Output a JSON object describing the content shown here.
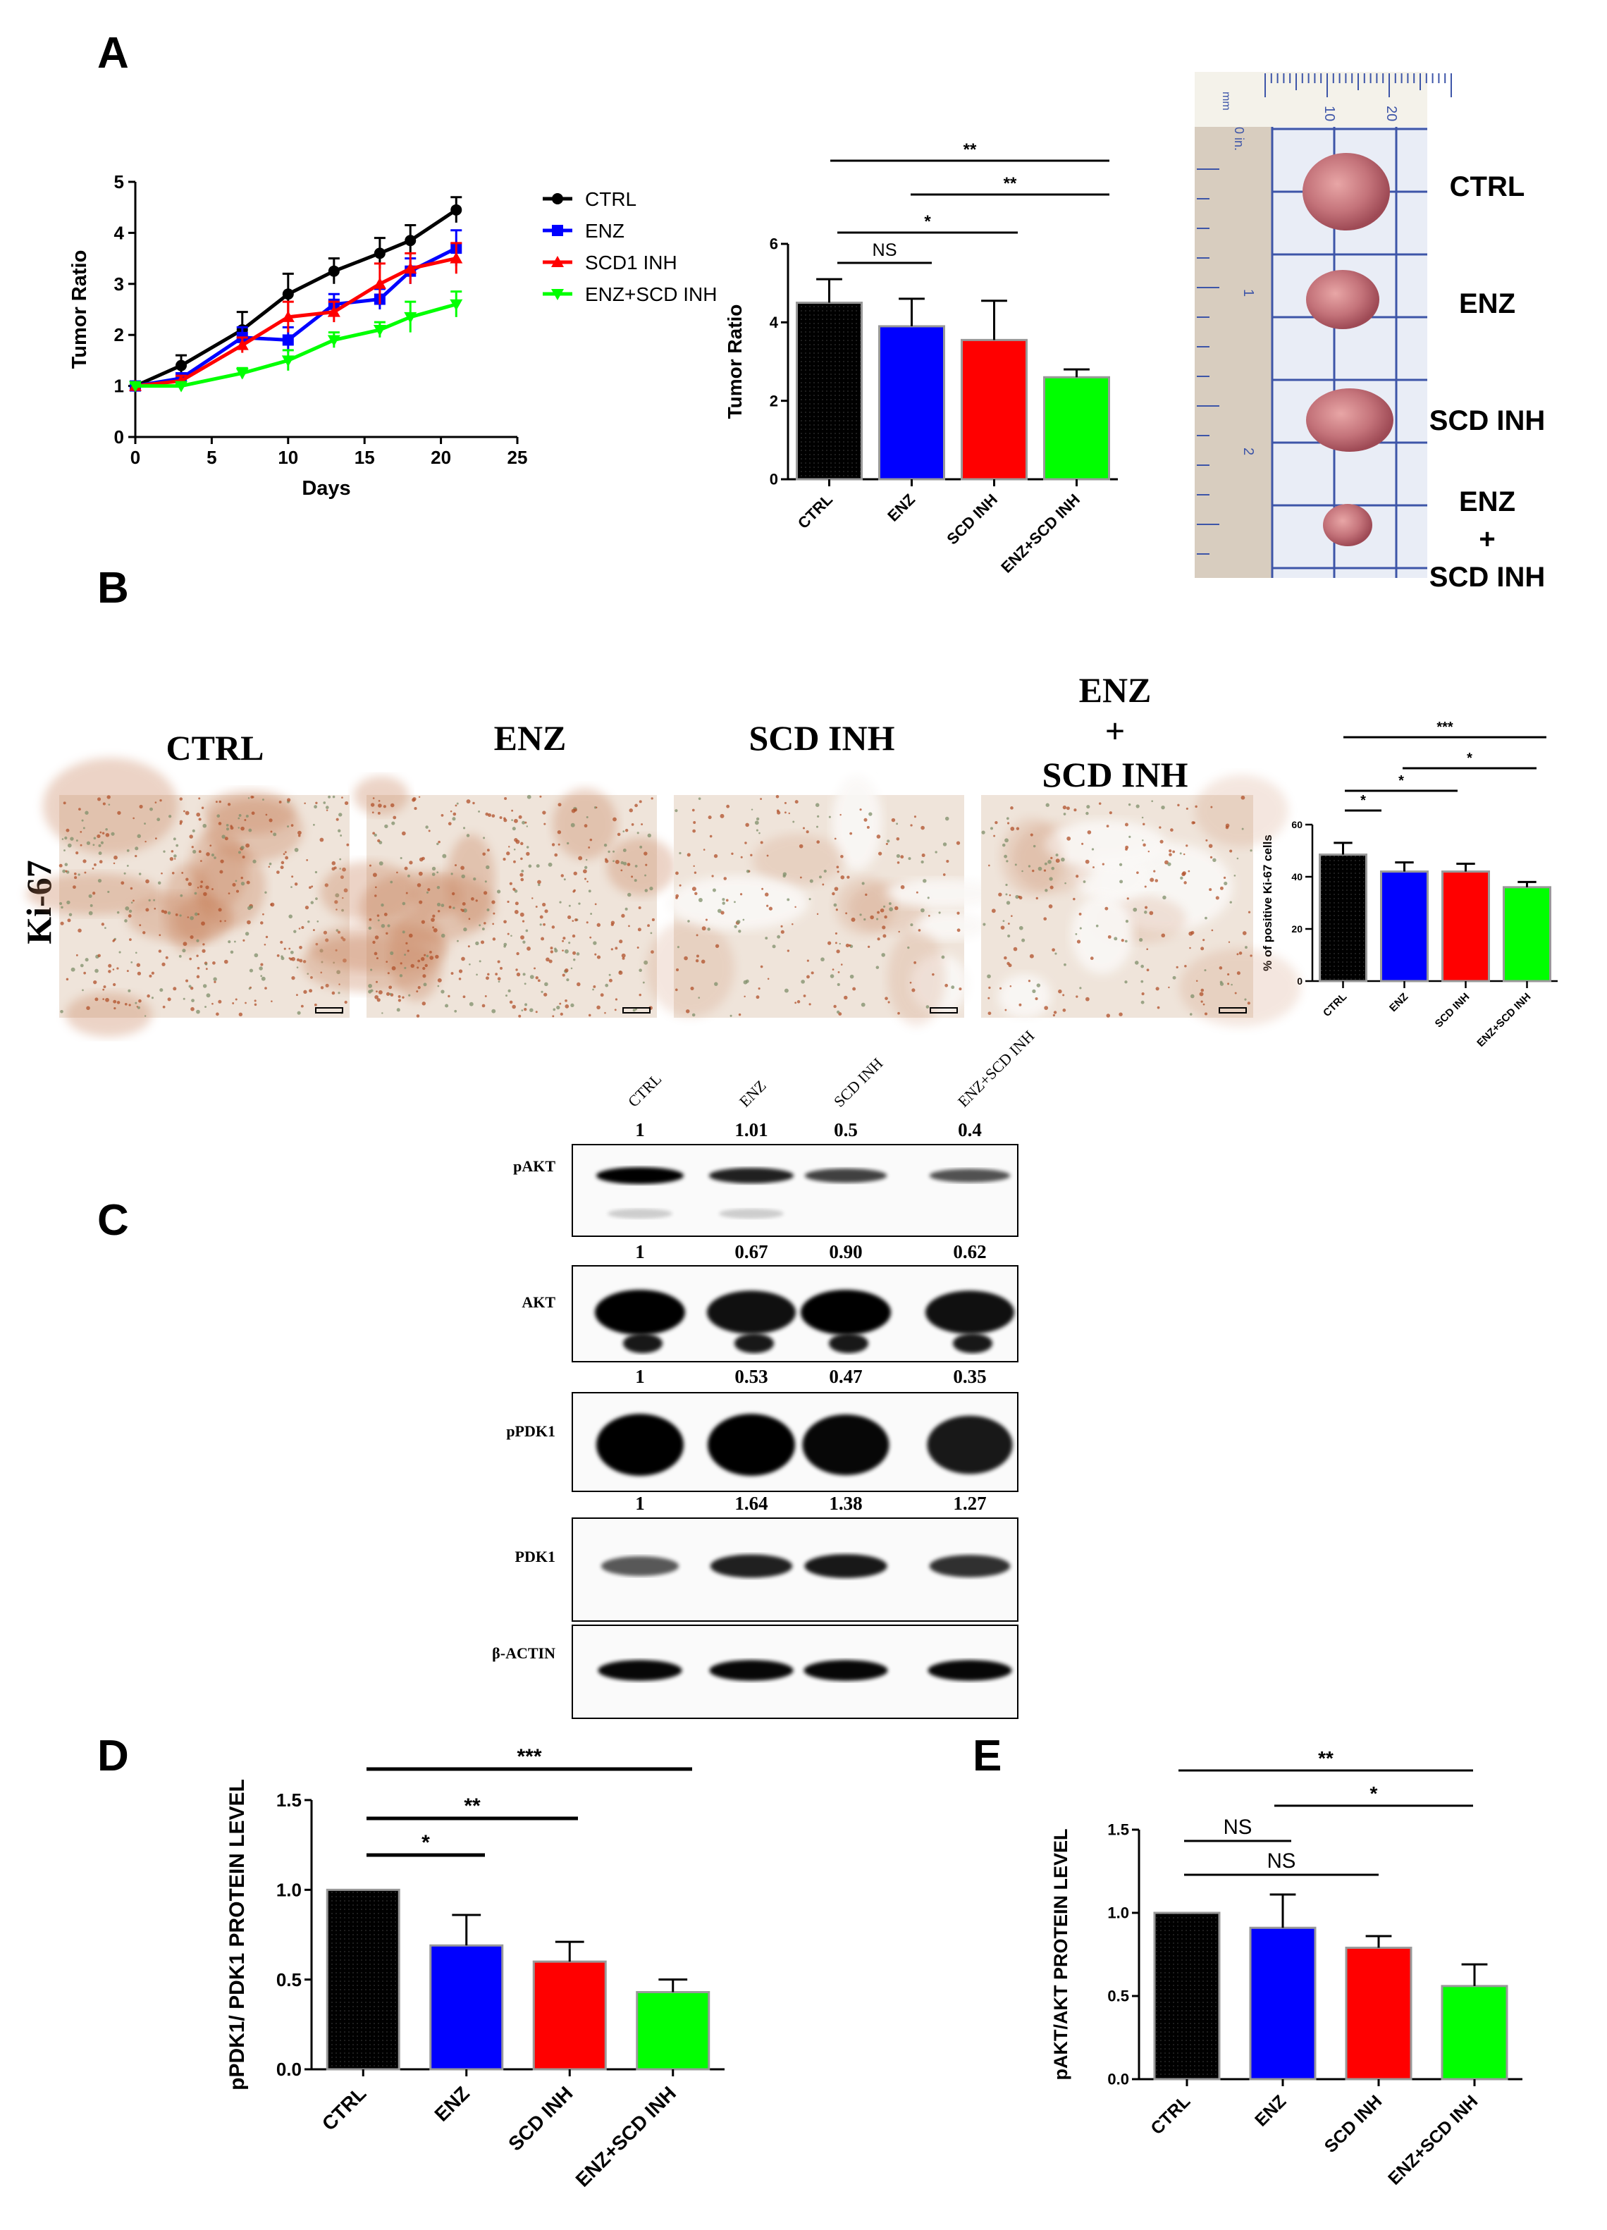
{
  "panel_labels": {
    "A": "A",
    "B": "B",
    "C": "C",
    "D": "D",
    "E": "E"
  },
  "colors": {
    "ctrl": "#000000",
    "enz": "#0000ff",
    "scd": "#ff0000",
    "combo": "#00ff00",
    "bar_edge": "#999999",
    "tissue": "#f2e6dc",
    "stain": "#b5542a"
  },
  "chart_data": [
    {
      "id": "A_line",
      "type": "line",
      "xlabel": "Days",
      "ylabel": "Tumor Ratio",
      "xlim": [
        0,
        25
      ],
      "ylim": [
        0,
        5
      ],
      "xticks": [
        "0",
        "5",
        "10",
        "15",
        "20",
        "25"
      ],
      "yticks": [
        "0",
        "1",
        "2",
        "3",
        "4",
        "5"
      ],
      "legend_position": "right",
      "series": [
        {
          "name": "CTRL",
          "color": "#000000",
          "marker": "circle",
          "x": [
            0,
            3,
            7,
            10,
            13,
            16,
            18,
            21
          ],
          "y": [
            1.0,
            1.4,
            2.1,
            2.8,
            3.25,
            3.6,
            3.85,
            4.45
          ],
          "err": [
            0.05,
            0.2,
            0.35,
            0.4,
            0.25,
            0.3,
            0.3,
            0.25
          ]
        },
        {
          "name": "ENZ",
          "color": "#0000ff",
          "marker": "square",
          "x": [
            0,
            3,
            7,
            10,
            13,
            16,
            18,
            21
          ],
          "y": [
            1.0,
            1.15,
            1.95,
            1.9,
            2.6,
            2.7,
            3.25,
            3.7
          ],
          "err": [
            0.05,
            0.1,
            0.2,
            0.25,
            0.2,
            0.2,
            0.25,
            0.35
          ]
        },
        {
          "name": "SCD1 INH",
          "color": "#ff0000",
          "marker": "triangle",
          "x": [
            0,
            3,
            7,
            10,
            13,
            16,
            18,
            21
          ],
          "y": [
            1.0,
            1.1,
            1.8,
            2.35,
            2.45,
            3.0,
            3.3,
            3.5
          ],
          "err": [
            0.05,
            0.1,
            0.15,
            0.3,
            0.2,
            0.4,
            0.3,
            0.3
          ]
        },
        {
          "name": "ENZ+SCD INH",
          "color": "#00ff00",
          "marker": "triangle-down",
          "x": [
            0,
            3,
            7,
            10,
            13,
            16,
            18,
            21
          ],
          "y": [
            1.0,
            1.0,
            1.25,
            1.5,
            1.9,
            2.1,
            2.35,
            2.6
          ],
          "err": [
            0.05,
            0.05,
            0.1,
            0.2,
            0.15,
            0.15,
            0.3,
            0.25
          ]
        }
      ]
    },
    {
      "id": "A_bar",
      "type": "bar",
      "ylabel": "Tumor Ratio",
      "ylim": [
        0,
        6
      ],
      "yticks": [
        "0",
        "2",
        "4",
        "6"
      ],
      "categories": [
        "CTRL",
        "ENZ",
        "SCD INH",
        "ENZ+SCD INH"
      ],
      "values": [
        4.5,
        3.9,
        3.55,
        2.6
      ],
      "errors": [
        0.6,
        0.7,
        1.0,
        0.2
      ],
      "colors": [
        "#000000",
        "#0000ff",
        "#ff0000",
        "#00ff00"
      ],
      "significance": [
        {
          "from": 0,
          "to": 1,
          "label": "NS"
        },
        {
          "from": 0,
          "to": 2,
          "label": "*"
        },
        {
          "from": 1,
          "to": 3,
          "label": "**"
        },
        {
          "from": 0,
          "to": 3,
          "label": "**"
        }
      ]
    },
    {
      "id": "B_bar",
      "type": "bar",
      "ylabel": "% of positive Ki-67 cells",
      "ylim": [
        0,
        60
      ],
      "yticks": [
        "0",
        "20",
        "40",
        "60"
      ],
      "categories": [
        "CTRL",
        "ENZ",
        "SCD INH",
        "ENZ+SCD INH"
      ],
      "values": [
        48.5,
        42,
        42,
        36
      ],
      "errors": [
        4.5,
        3.5,
        3.0,
        2.0
      ],
      "colors": [
        "#000000",
        "#0000ff",
        "#ff0000",
        "#00ff00"
      ],
      "significance": [
        {
          "from": 0,
          "to": 1,
          "label": "*"
        },
        {
          "from": 0,
          "to": 2,
          "label": "*"
        },
        {
          "from": 1,
          "to": 3,
          "label": "*"
        },
        {
          "from": 0,
          "to": 3,
          "label": "***"
        }
      ]
    },
    {
      "id": "D_bar",
      "type": "bar",
      "ylabel": "pPDK1/ PDK1 PROTEIN LEVEL",
      "ylim": [
        0,
        1.5
      ],
      "yticks": [
        "0.0",
        "0.5",
        "1.0",
        "1.5"
      ],
      "categories": [
        "CTRL",
        "ENZ",
        "SCD INH",
        "ENZ+SCD INH"
      ],
      "values": [
        1.0,
        0.69,
        0.6,
        0.43
      ],
      "errors": [
        0,
        0.17,
        0.11,
        0.07
      ],
      "colors": [
        "#000000",
        "#0000ff",
        "#ff0000",
        "#00ff00"
      ],
      "significance": [
        {
          "from": 0,
          "to": 1,
          "label": "*"
        },
        {
          "from": 0,
          "to": 2,
          "label": "**"
        },
        {
          "from": 0,
          "to": 3,
          "label": "***"
        }
      ]
    },
    {
      "id": "E_bar",
      "type": "bar",
      "ylabel": "pAKT/AKT PROTEIN LEVEL",
      "ylim": [
        0,
        1.5
      ],
      "yticks": [
        "0.0",
        "0.5",
        "1.0",
        "1.5"
      ],
      "categories": [
        "CTRL",
        "ENZ",
        "SCD INH",
        "ENZ+SCD INH"
      ],
      "values": [
        1.0,
        0.91,
        0.79,
        0.56
      ],
      "errors": [
        0,
        0.2,
        0.07,
        0.13
      ],
      "colors": [
        "#000000",
        "#0000ff",
        "#ff0000",
        "#00ff00"
      ],
      "significance": [
        {
          "from": 0,
          "to": 1,
          "label": "NS"
        },
        {
          "from": 0,
          "to": 3,
          "label": "NS"
        },
        {
          "from": 2,
          "to": 4,
          "label": "*"
        },
        {
          "from": 0,
          "to": 4,
          "label": "**"
        }
      ]
    }
  ],
  "photo_labels": [
    "CTRL",
    "ENZ",
    "SCD INH",
    "ENZ",
    "+",
    "SCD INH"
  ],
  "ruler_labels": [
    "mm",
    "0 in.",
    "10",
    "20",
    "1",
    "2"
  ],
  "ki67": {
    "row_label": "Ki-67",
    "groups": [
      "CTRL",
      "ENZ",
      "SCD INH",
      "ENZ",
      "+",
      "SCD INH"
    ]
  },
  "western": {
    "lanes": [
      "CTRL",
      "ENZ",
      "SCD INH",
      "ENZ+SCD INH"
    ],
    "blots": [
      {
        "label": "pAKT",
        "quant": [
          "1",
          "1.01",
          "0.5",
          "0.4"
        ],
        "intensity": [
          1.0,
          0.8,
          0.6,
          0.5
        ]
      },
      {
        "label": "AKT",
        "quant": [
          "1",
          "0.67",
          "0.90",
          "0.62"
        ],
        "intensity": [
          1.0,
          0.9,
          1.0,
          0.9
        ]
      },
      {
        "label": "pPDK1",
        "quant": [
          "1",
          "0.53",
          "0.47",
          "0.35"
        ],
        "intensity": [
          1.0,
          1.0,
          0.95,
          0.85
        ]
      },
      {
        "label": "PDK1",
        "quant": [
          "1",
          "1.64",
          "1.38",
          "1.27"
        ],
        "intensity": [
          0.45,
          0.8,
          0.85,
          0.7
        ]
      },
      {
        "label": "β-ACTIN",
        "quant": [
          "",
          "",
          "",
          ""
        ],
        "intensity": [
          0.95,
          0.95,
          0.95,
          0.95
        ]
      }
    ]
  }
}
